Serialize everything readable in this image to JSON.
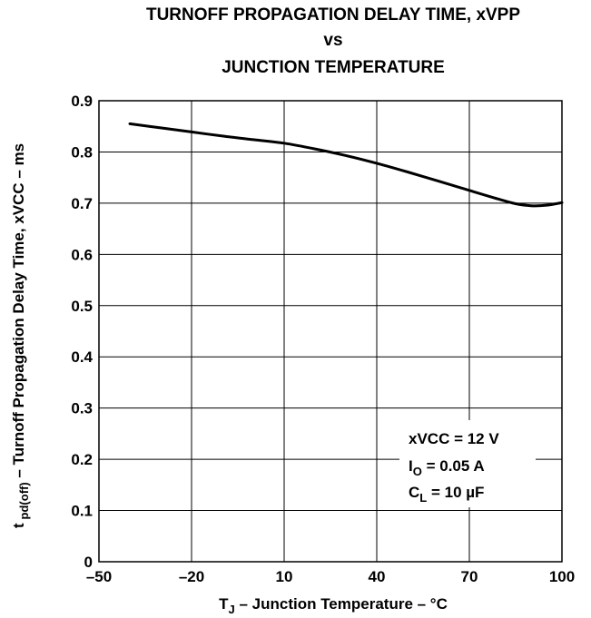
{
  "chart_data": {
    "type": "line",
    "title": [
      "TURNOFF PROPAGATION DELAY TIME, xVPP",
      "vs",
      "JUNCTION TEMPERATURE"
    ],
    "xlabel": {
      "main": "T",
      "sub": "J",
      "rest": " – Junction Temperature – °C"
    },
    "ylabel": {
      "main": "t",
      "sub": "pd(off)",
      "rest": " – Turnoff Propagation Delay Time, xVCC – ms"
    },
    "xlim": [
      -50,
      100
    ],
    "ylim": [
      0,
      0.9
    ],
    "x_ticks": [
      -50,
      -20,
      10,
      40,
      70,
      100
    ],
    "x_tick_labels": [
      "–50",
      "–20",
      "10",
      "40",
      "70",
      "100"
    ],
    "y_ticks": [
      0,
      0.1,
      0.2,
      0.3,
      0.4,
      0.5,
      0.6,
      0.7,
      0.8,
      0.9
    ],
    "y_tick_labels": [
      "0",
      "0.1",
      "0.2",
      "0.3",
      "0.4",
      "0.5",
      "0.6",
      "0.7",
      "0.8",
      "0.9"
    ],
    "grid": true,
    "series": [
      {
        "x": [
          -40,
          -30,
          -20,
          -10,
          0,
          10,
          20,
          30,
          40,
          50,
          60,
          70,
          80,
          85,
          90,
          95,
          100
        ],
        "y": [
          0.855,
          0.847,
          0.839,
          0.831,
          0.824,
          0.817,
          0.806,
          0.793,
          0.778,
          0.761,
          0.743,
          0.725,
          0.707,
          0.699,
          0.695,
          0.696,
          0.701
        ],
        "color": "#000000"
      }
    ],
    "annotations": [
      {
        "main": "xVCC = 12 V",
        "sub": "",
        "rest": ""
      },
      {
        "main": "I",
        "sub": "O",
        "rest": " = 0.05 A"
      },
      {
        "main": "C",
        "sub": "L",
        "rest": " = 10 µF"
      }
    ]
  }
}
